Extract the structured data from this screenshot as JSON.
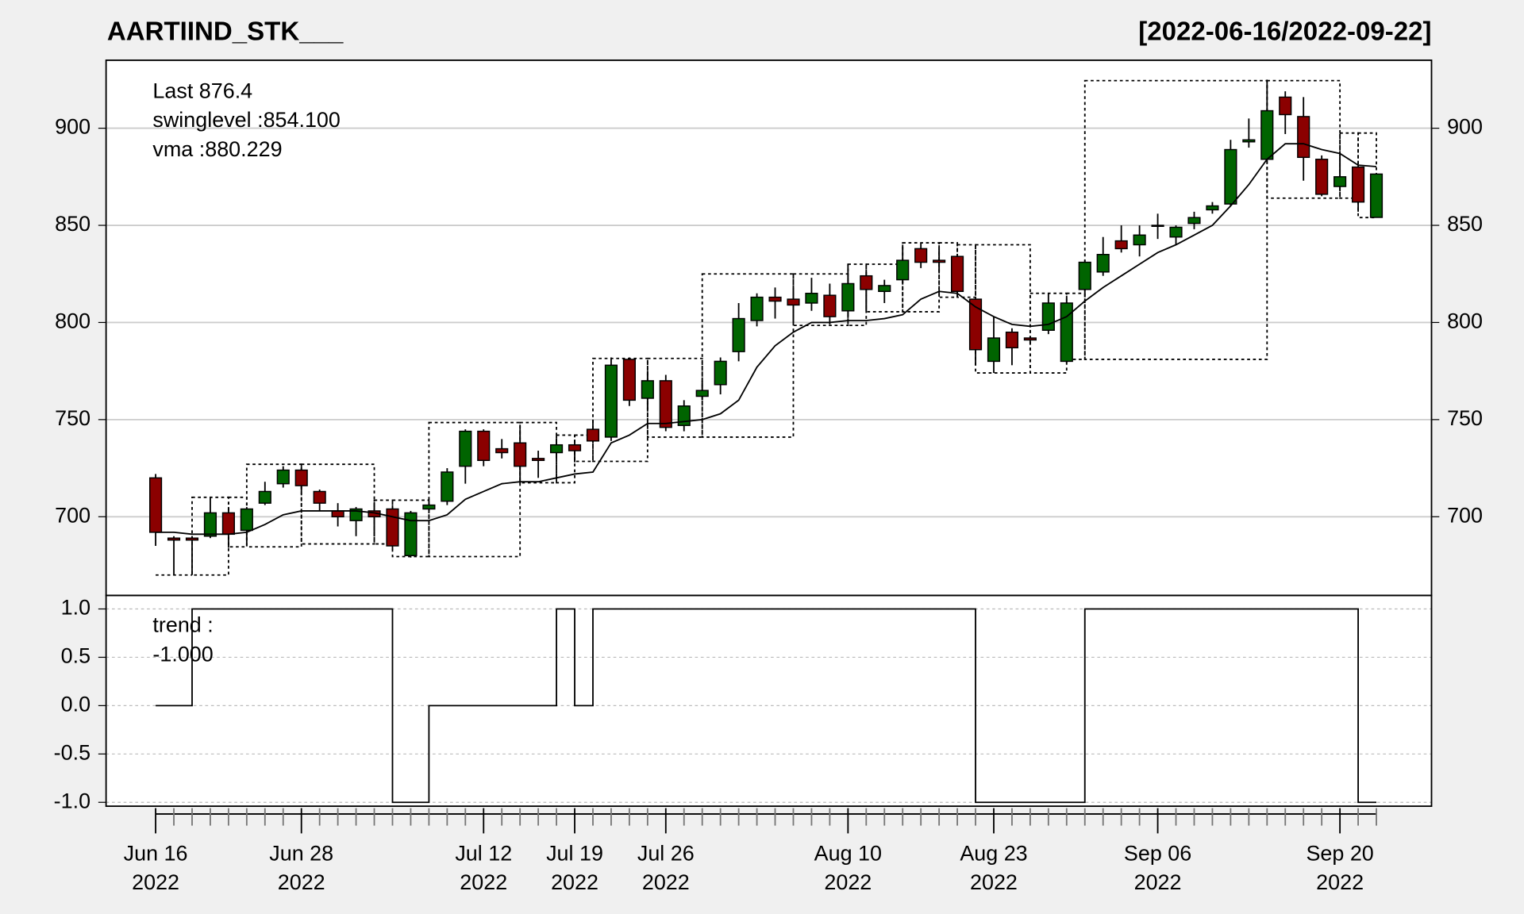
{
  "chart_data": {
    "type": "candlestick",
    "title": "AARTIIND_STK___",
    "subtitle": "[2022-06-16/2022-09-22]",
    "legend": [
      "Last 876.4",
      "swinglevel :854.100",
      "vma :880.229"
    ],
    "legend_colors": [
      "#006400",
      "#000000",
      "#000000"
    ],
    "up_color": "#006400",
    "down_color": "#8b0000",
    "categories": [
      "Jun 16\n2022",
      null,
      null,
      null,
      null,
      null,
      null,
      null,
      "Jun 28\n2022",
      null,
      null,
      null,
      null,
      null,
      null,
      null,
      null,
      null,
      "Jul 12\n2022",
      null,
      null,
      null,
      null,
      "Jul 19\n2022",
      null,
      null,
      null,
      null,
      "Jul 26\n2022",
      null,
      null,
      null,
      null,
      null,
      null,
      null,
      null,
      null,
      "Aug 10\n2022",
      null,
      null,
      null,
      null,
      null,
      null,
      null,
      "Aug 23\n2022",
      null,
      null,
      null,
      null,
      null,
      null,
      null,
      null,
      "Sep 06\n2022",
      null,
      null,
      null,
      null,
      null,
      null,
      null,
      null,
      null,
      "Sep 20\n2022",
      null,
      null
    ],
    "open": [
      720,
      689,
      689,
      690,
      702,
      693,
      707,
      717,
      724,
      713,
      703,
      698,
      703,
      704,
      680,
      704,
      708,
      726,
      744,
      735,
      738,
      730,
      733,
      737,
      745,
      741,
      781,
      761,
      770,
      747,
      762,
      768,
      785,
      801,
      813,
      812,
      810,
      814,
      806,
      824,
      816,
      822,
      838,
      832,
      834,
      812,
      780,
      795,
      792,
      796,
      780,
      817,
      826,
      842,
      840,
      850,
      844,
      851,
      858,
      861,
      893,
      884,
      916,
      906,
      884,
      870,
      880,
      854.1
    ],
    "high": [
      722,
      690,
      690,
      710,
      705,
      705,
      718,
      726,
      726,
      714,
      707,
      705,
      707,
      705,
      703,
      708,
      725,
      745,
      745,
      740,
      745,
      734,
      740,
      738,
      750,
      782,
      782,
      775,
      773,
      760,
      770,
      782,
      810,
      815,
      818,
      818,
      823,
      820,
      830,
      826,
      822,
      840,
      841,
      838,
      835,
      813,
      803,
      797,
      793,
      815,
      812,
      832,
      844,
      850,
      850,
      856,
      850,
      857,
      862,
      894,
      905,
      925,
      919,
      916,
      886,
      888,
      881,
      877
    ],
    "low": [
      685,
      670,
      670,
      689,
      684,
      686,
      706,
      715,
      713,
      703,
      695,
      690,
      690,
      683,
      679,
      703,
      706,
      717,
      726,
      730,
      717,
      720,
      730,
      728,
      738,
      739,
      757,
      755,
      744,
      744,
      760,
      763,
      780,
      798,
      802,
      800,
      806,
      799,
      803,
      806,
      810,
      820,
      828,
      826,
      814,
      778,
      774,
      778,
      789,
      794,
      779,
      813,
      824,
      836,
      834,
      843,
      840,
      848,
      856,
      860,
      890,
      883,
      897,
      873,
      865,
      868,
      857,
      854
    ],
    "close": [
      692,
      688,
      688,
      702,
      691,
      704,
      713,
      724,
      716,
      707,
      700,
      704,
      700,
      685,
      702,
      706,
      723,
      744,
      729,
      733,
      726,
      729,
      737,
      734,
      739,
      778,
      760,
      770,
      746,
      757,
      765,
      780,
      802,
      813,
      811,
      809,
      815,
      803,
      820,
      817,
      819,
      832,
      831,
      831,
      816,
      786,
      792,
      787,
      791,
      810,
      810,
      831,
      835,
      838,
      845,
      850,
      849,
      854,
      860,
      889,
      894,
      909,
      907,
      885,
      866,
      875,
      862,
      876.4
    ],
    "vma": {
      "color": "#000000",
      "values": [
        692,
        692,
        691,
        691,
        691,
        692,
        696,
        701,
        703,
        703,
        703,
        703,
        702,
        700,
        698,
        698,
        701,
        709,
        713,
        717,
        718,
        718,
        720,
        722,
        723,
        738,
        742,
        748,
        748,
        749,
        750,
        753,
        760,
        777,
        788,
        795,
        800,
        800,
        801,
        801,
        802,
        804,
        812,
        816,
        815,
        808,
        803,
        799,
        798,
        799,
        803,
        811,
        818,
        824,
        830,
        836,
        840,
        845,
        850,
        860,
        871,
        884,
        892,
        892,
        889,
        887,
        881,
        880.229
      ]
    },
    "swing": {
      "points": [
        0,
        2,
        4,
        5,
        8,
        12,
        13,
        15,
        20,
        22,
        23,
        24,
        27,
        30,
        35,
        38,
        39,
        41,
        43,
        44,
        45,
        48,
        50,
        51,
        61,
        65,
        66,
        67
      ],
      "levels": [
        670,
        710,
        684.5,
        727,
        686,
        708.5,
        679.5,
        748.5,
        717.5,
        742,
        728.5,
        781.5,
        741,
        825,
        798.5,
        830,
        805.5,
        841,
        813,
        840,
        774,
        815,
        781,
        924.5,
        864,
        897.5,
        854
      ]
    },
    "ylim": [
      659.5,
      935
    ],
    "yticks": [
      700,
      750,
      800,
      850,
      900
    ],
    "grid": true,
    "trend": {
      "type": "step",
      "legend": [
        "trend :",
        "-1.000"
      ],
      "values": [
        0,
        0,
        1,
        1,
        1,
        1,
        1,
        1,
        1,
        1,
        1,
        1,
        1,
        -1,
        -1,
        0,
        0,
        0,
        0,
        0,
        0,
        0,
        1,
        0,
        1,
        1,
        1,
        1,
        1,
        1,
        1,
        1,
        1,
        1,
        1,
        1,
        1,
        1,
        1,
        1,
        1,
        1,
        1,
        1,
        1,
        -1,
        -1,
        -1,
        -1,
        -1,
        -1,
        1,
        1,
        1,
        1,
        1,
        1,
        1,
        1,
        1,
        1,
        1,
        1,
        1,
        1,
        1,
        -1,
        -1
      ],
      "ylim": [
        -1.04,
        1.14
      ],
      "yticks": [
        {
          "value": 1,
          "label": "1.0"
        },
        {
          "value": 0.5,
          "label": "0.5"
        },
        {
          "value": 0,
          "label": "0.0"
        },
        {
          "value": -0.5,
          "label": "-0.5"
        },
        {
          "value": -1,
          "label": "-1.0"
        }
      ],
      "grid": true
    }
  }
}
